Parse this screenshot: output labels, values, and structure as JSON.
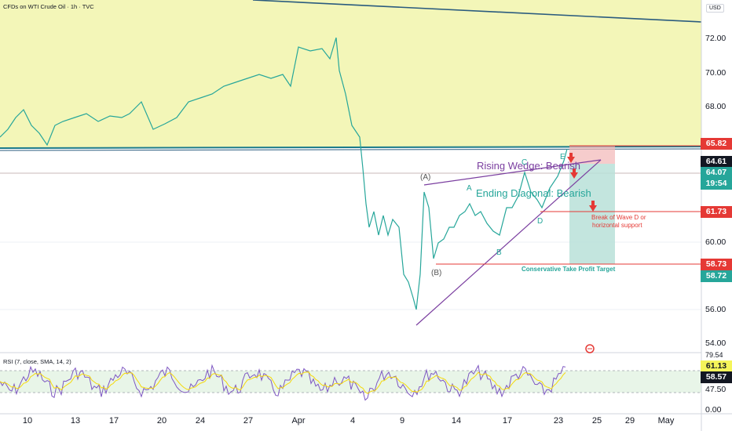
{
  "header": {
    "title": "CFDs on WTI Crude Oil · 1h · TVC",
    "currency": "USD"
  },
  "price_axis": {
    "ticks": [
      "72.00",
      "70.00",
      "68.00",
      "60.00",
      "56.00",
      "54.00"
    ]
  },
  "price_tags": [
    {
      "label": "65.82",
      "color": "#e53935"
    },
    {
      "label": "64.61",
      "color": "#131722"
    },
    {
      "label": "64.07",
      "color": "#26a69a"
    },
    {
      "label": "19:54",
      "color": "#26a69a"
    },
    {
      "label": "61.73",
      "color": "#e53935"
    },
    {
      "label": "58.73",
      "color": "#e53935"
    },
    {
      "label": "58.72",
      "color": "#26a69a"
    }
  ],
  "rsi": {
    "title": "RSI (7, close, SMA, 14, 2)",
    "ticks": [
      "79.54",
      "47.50",
      "0.00"
    ],
    "tags": [
      {
        "label": "61.13",
        "color": "#f5f55a"
      },
      {
        "label": "58.57",
        "color": "#131722"
      }
    ]
  },
  "time_axis": {
    "labels": [
      "10",
      "13",
      "17",
      "20",
      "24",
      "27",
      "Apr",
      "4",
      "9",
      "14",
      "17",
      "23",
      "25",
      "29",
      "May"
    ]
  },
  "annotations": {
    "rising_wedge": "Rising Wedge: Bearish",
    "ending_diagonal": "Ending Diagonal: Bearish",
    "wave_A_paren": "(A)",
    "wave_B_paren": "(B)",
    "wave_A": "A",
    "wave_B": "B",
    "wave_C": "C",
    "wave_D": "D",
    "wave_E": "E",
    "break_note_1": "Break of Wave D or",
    "break_note_2": "horizontal support",
    "take_profit": "Conservative Take Profit Target"
  },
  "colors": {
    "accent_green": "#26a69a",
    "accent_red": "#e53935",
    "wedge_purple": "#7b3fa0",
    "zone_yellow": "#f3f6b8"
  }
}
